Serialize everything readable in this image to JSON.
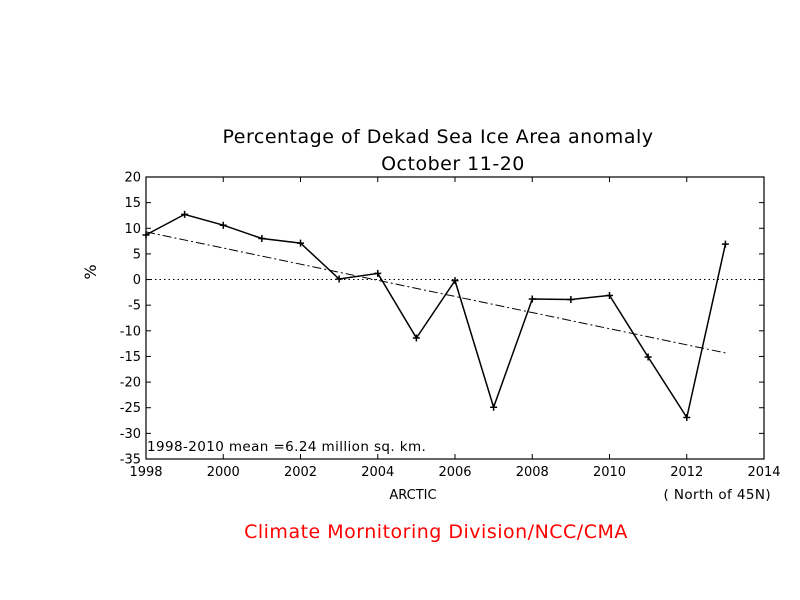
{
  "chart_data": {
    "type": "line",
    "title": "Percentage of Dekad Sea Ice Area anomaly",
    "subtitle": "October 11-20",
    "xlabel": "",
    "ylabel": "%",
    "xlim": [
      1998,
      2014
    ],
    "ylim": [
      -35,
      20
    ],
    "x_ticks": [
      1998,
      2000,
      2002,
      2004,
      2006,
      2008,
      2010,
      2012,
      2014
    ],
    "y_ticks": [
      20,
      15,
      10,
      5,
      0,
      -5,
      -10,
      -15,
      -20,
      -25,
      -30,
      -35
    ],
    "grid": false,
    "zero_line": true,
    "series": [
      {
        "style": "solid-with-plus-markers",
        "color": "#000000",
        "x": [
          1998,
          1999,
          2000,
          2001,
          2002,
          2003,
          2004,
          2005,
          2006,
          2007,
          2008,
          2009,
          2010,
          2011,
          2012,
          2013
        ],
        "y": [
          8.7,
          12.7,
          10.6,
          8.0,
          7.1,
          0.1,
          1.2,
          -11.4,
          -0.2,
          -24.9,
          -3.8,
          -3.9,
          -3.1,
          -15.1,
          -26.9,
          6.9
        ]
      },
      {
        "style": "dash-dot-trend",
        "color": "#000000",
        "x": [
          1998,
          2013
        ],
        "y": [
          9.3,
          -14.3
        ]
      }
    ],
    "annotations": {
      "mean_note": "1998-2010  mean =6.24 million sq. km.",
      "region": "ARCTIC",
      "extent": "( North of 45N)"
    }
  },
  "footer": {
    "credit": "Climate Mornitoring Division/NCC/CMA",
    "credit_color": "#ff0000"
  }
}
